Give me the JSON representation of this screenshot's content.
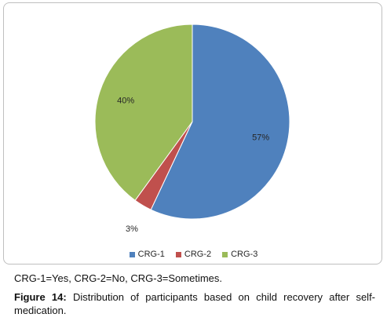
{
  "chart_data": {
    "type": "pie",
    "categories": [
      "CRG-1",
      "CRG-2",
      "CRG-3"
    ],
    "values": [
      57,
      3,
      40
    ],
    "labels": [
      "57%",
      "3%",
      "40%"
    ],
    "colors": [
      "#4f81bd",
      "#c0504d",
      "#9bbb59"
    ],
    "legend_position": "bottom",
    "title": ""
  },
  "legend": {
    "items": [
      {
        "label": "CRG-1",
        "color": "#4f81bd"
      },
      {
        "label": "CRG-2",
        "color": "#c0504d"
      },
      {
        "label": "CRG-3",
        "color": "#9bbb59"
      }
    ]
  },
  "caption": {
    "key": "CRG-1=Yes, CRG-2=No, CRG-3=Sometimes.",
    "figure_label": "Figure 14:",
    "figure_text": " Distribution of participants based on child recovery after self-medication."
  }
}
